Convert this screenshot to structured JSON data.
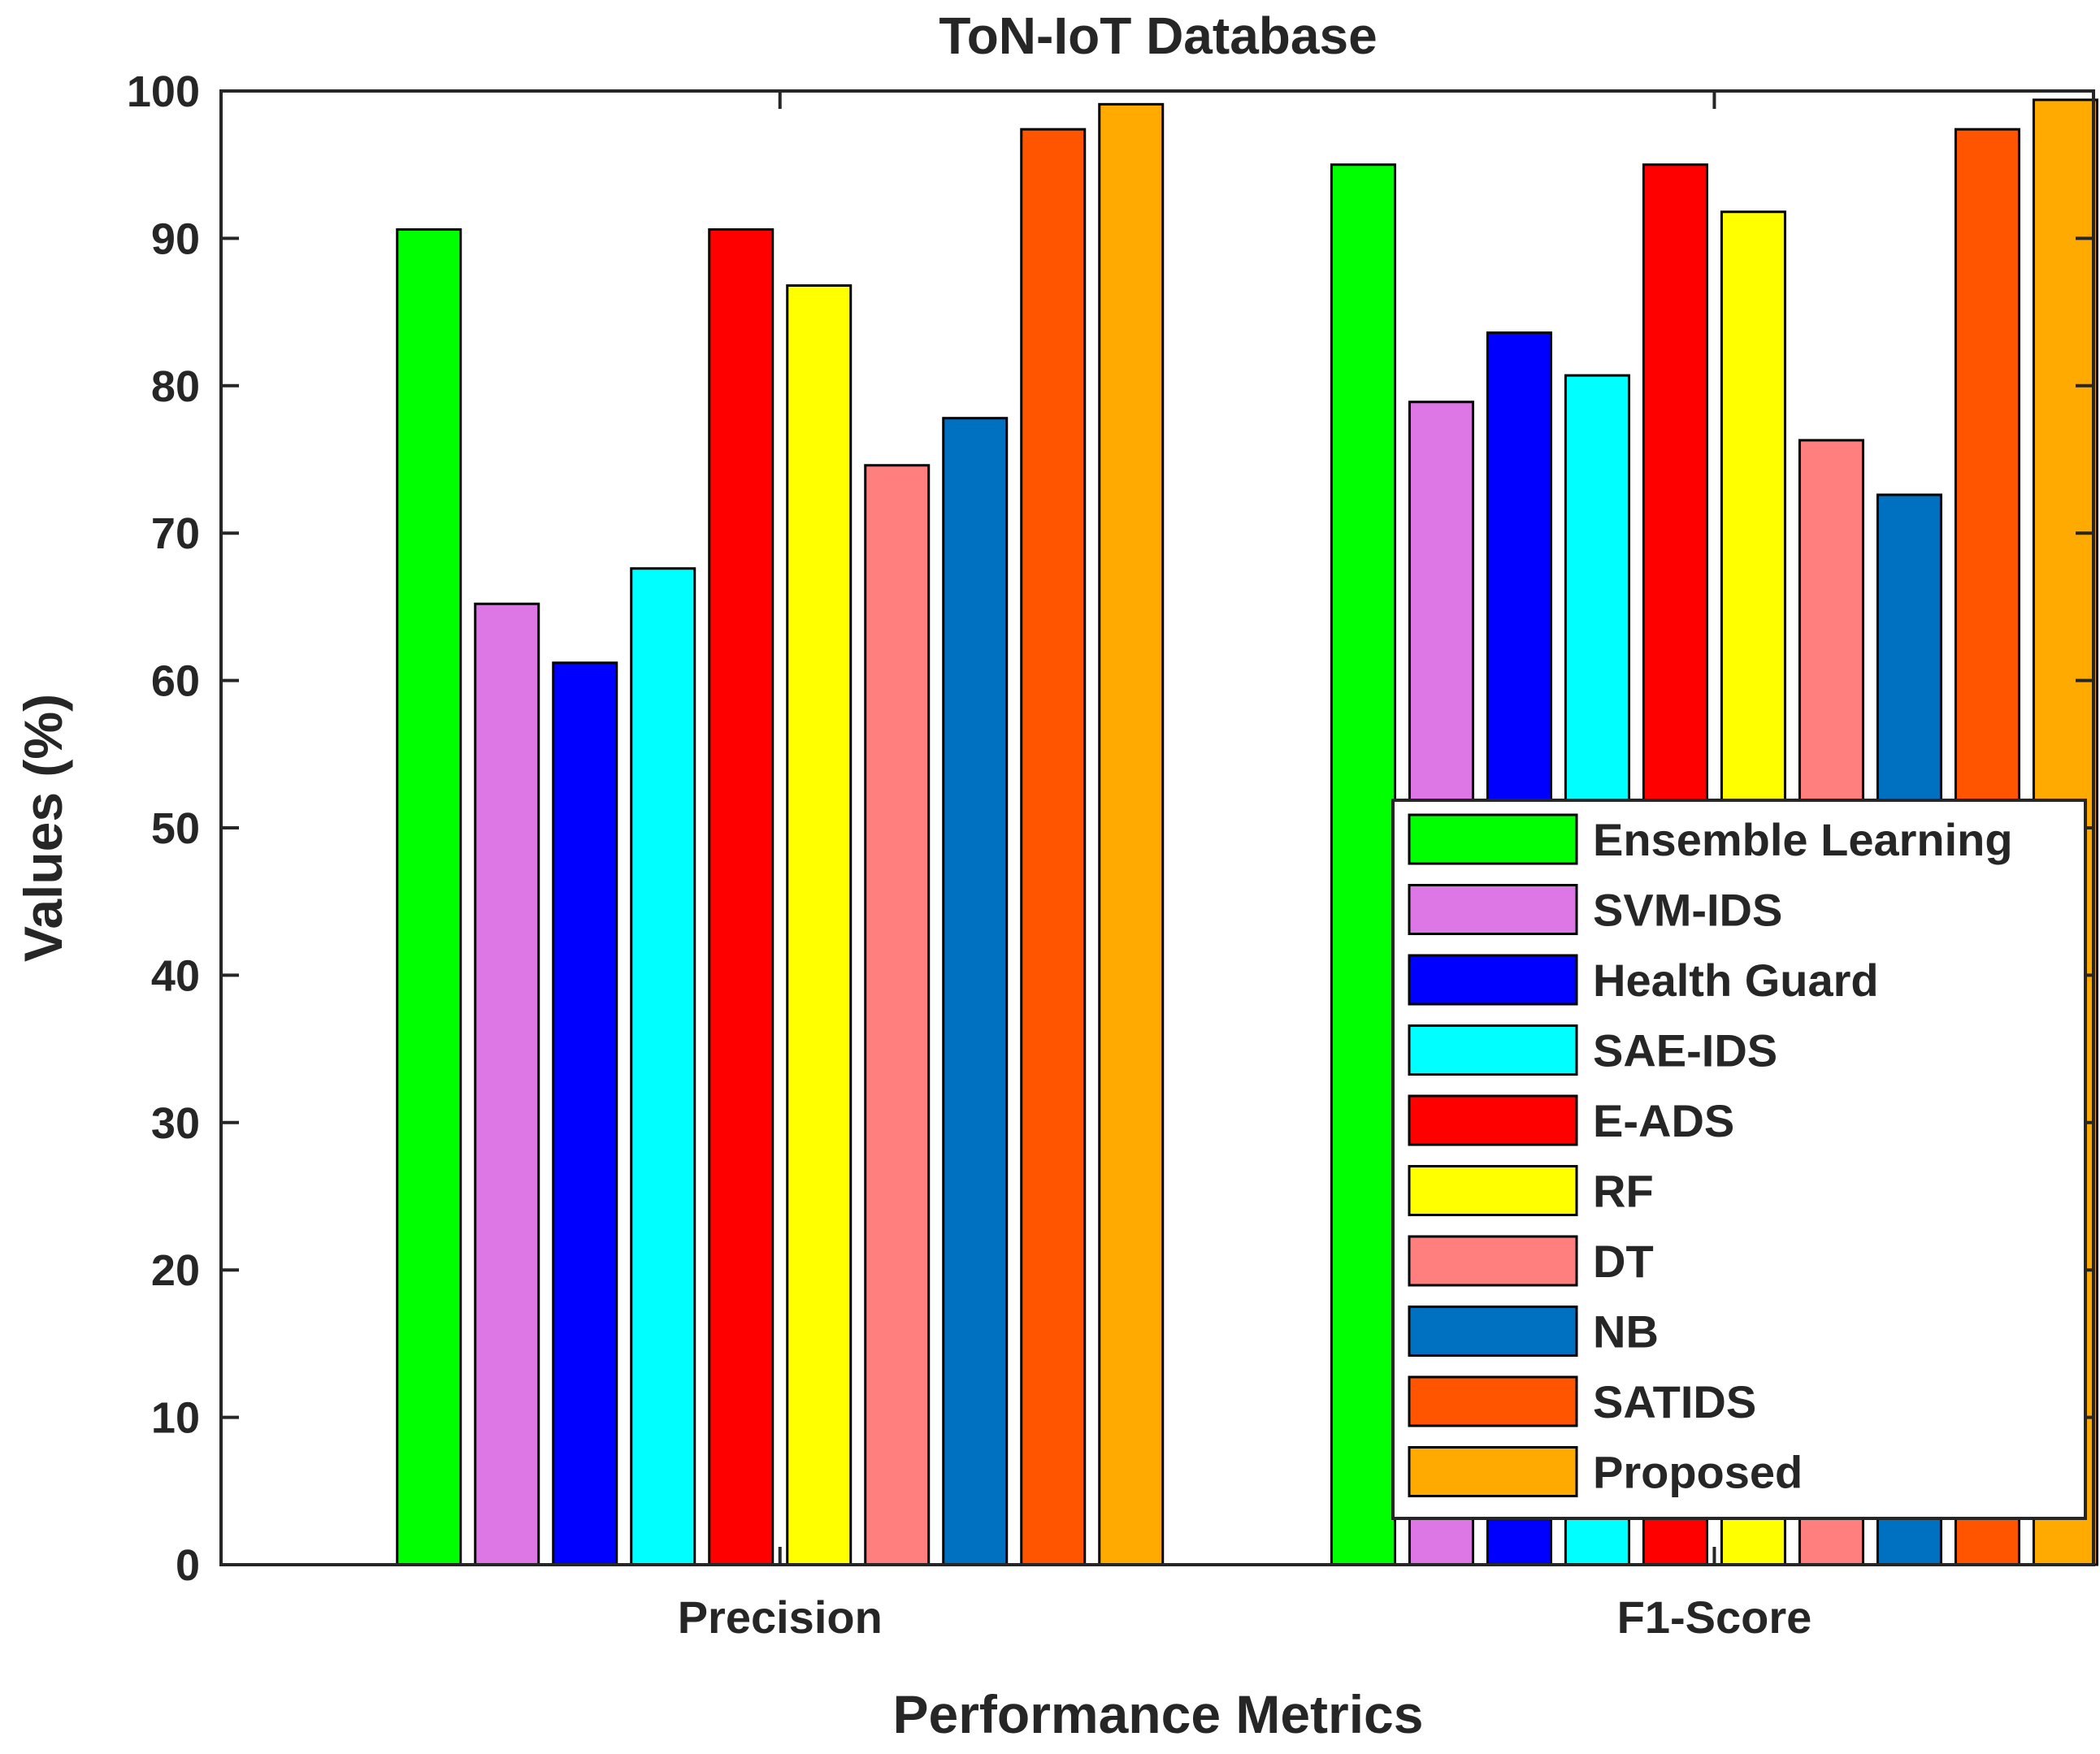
{
  "chart_data": {
    "type": "bar",
    "title": "ToN-IoT Database",
    "xlabel": "Performance Metrics",
    "ylabel": "Values (%)",
    "ylim": [
      0,
      100
    ],
    "yticks": [
      0,
      10,
      20,
      30,
      40,
      50,
      60,
      70,
      80,
      90,
      100
    ],
    "grid": false,
    "legend_position": "bottom-right",
    "categories": [
      "Precision",
      "F1-Score"
    ],
    "series": [
      {
        "name": "Ensemble Learning",
        "color": "#00ff00",
        "values": [
          90.6,
          95.0
        ]
      },
      {
        "name": "SVM-IDS",
        "color": "#dd77e6",
        "values": [
          65.2,
          78.9
        ]
      },
      {
        "name": "Health Guard",
        "color": "#0000ff",
        "values": [
          61.2,
          83.6
        ]
      },
      {
        "name": "SAE-IDS",
        "color": "#00ffff",
        "values": [
          67.6,
          80.7
        ]
      },
      {
        "name": "E-ADS",
        "color": "#ff0000",
        "values": [
          90.6,
          95.0
        ]
      },
      {
        "name": "RF",
        "color": "#ffff00",
        "values": [
          86.8,
          91.8
        ]
      },
      {
        "name": "DT",
        "color": "#ff7f7f",
        "values": [
          74.6,
          76.3
        ]
      },
      {
        "name": "NB",
        "color": "#0070c0",
        "values": [
          77.8,
          72.6
        ]
      },
      {
        "name": "SATIDS",
        "color": "#ff5500",
        "values": [
          97.4,
          97.4
        ]
      },
      {
        "name": "Proposed",
        "color": "#ffaa00",
        "values": [
          99.1,
          99.4
        ]
      }
    ]
  }
}
